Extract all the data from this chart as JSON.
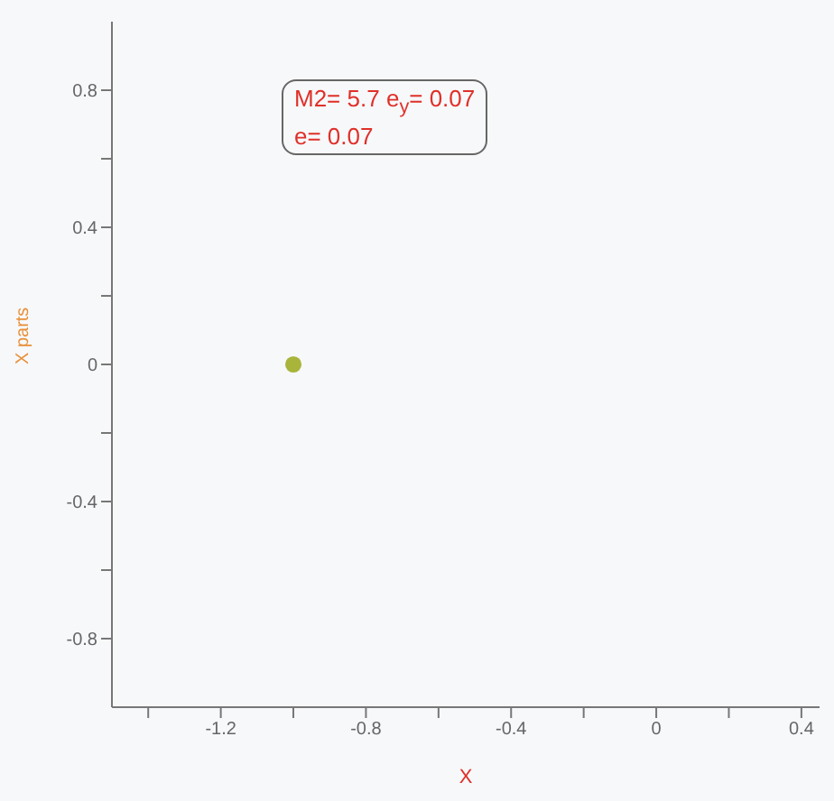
{
  "chart_data": {
    "type": "scatter",
    "xlabel": "X",
    "ylabel": "X parts",
    "annotations": [
      "M2= 5.7 e$_{y}$= 0.07",
      "e= 0.07"
    ],
    "series": [
      {
        "color": "#a8b43a",
        "x": [
          -1.0
        ],
        "values": [
          0
        ]
      }
    ],
    "xlim": [
      -1.5,
      0.45
    ],
    "ylim": [
      -1,
      1
    ],
    "xticks": [
      {
        "value": -1.4,
        "label": null
      },
      -1.2,
      {
        "value": -1.0,
        "label": null
      },
      -0.8,
      {
        "value": -0.6,
        "label": null
      },
      -0.4,
      {
        "value": -0.2,
        "label": null
      },
      0,
      {
        "value": 0.2,
        "label": null
      },
      0.4
    ],
    "yticks": [
      -0.8,
      {
        "value": -0.6,
        "label": null
      },
      -0.4,
      {
        "value": -0.2,
        "label": null
      },
      0,
      {
        "value": 0.2,
        "label": null
      },
      0.4,
      {
        "value": 0.6,
        "label": null
      },
      0.8
    ],
    "marker": "circle",
    "grid": false
  }
}
